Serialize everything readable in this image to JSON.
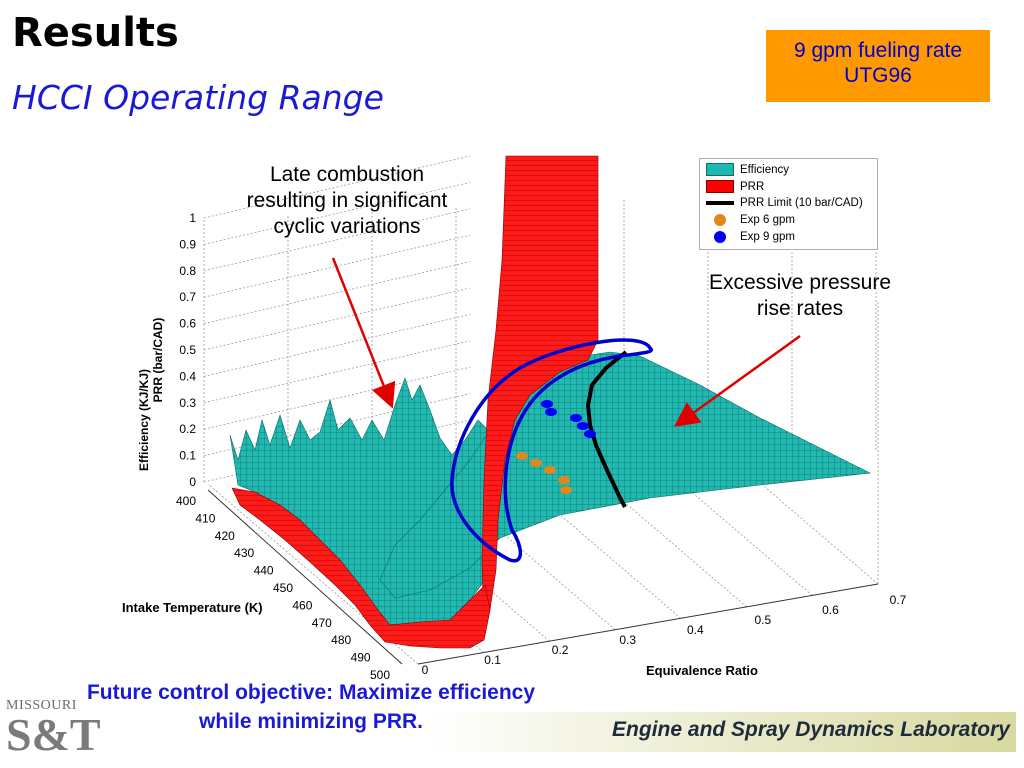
{
  "slide": {
    "title": "Results",
    "subtitle": "HCCI Operating Range",
    "info_box": [
      "9 gpm fueling rate",
      "UTG96"
    ],
    "callouts": {
      "late": [
        "Late combustion",
        "resulting in significant",
        "cyclic variations"
      ],
      "excess": [
        "Excessive pressure",
        "rise rates"
      ]
    },
    "footer": {
      "objective": [
        "Future control objective:  Maximize efficiency",
        "while minimizing PRR."
      ],
      "lab": "Engine and Spray Dynamics Laboratory",
      "logo_word": "MISSOURI",
      "logo_mark": "S&T"
    }
  },
  "colors": {
    "efficiency": "#1fb8b0",
    "prr": "#ff0000",
    "prr_limit": "#000000",
    "exp6": "#e0871e",
    "exp9": "#0000ff",
    "highlight": "#0000cc",
    "arrow": "#e00000",
    "info_box": "#ff9900"
  },
  "chart_data": {
    "type": "surface3d",
    "zlabel": "Efficiency (KJ/KJ)\nPRR (bar/CAD)",
    "zlabel_lines": [
      "Efficiency (KJ/KJ)",
      "PRR (bar/CAD)"
    ],
    "ylabel": "Intake Temperature (K)",
    "xlabel": "Equivalence Ratio",
    "z_ticks": [
      "0",
      "0.1",
      "0.2",
      "0.3",
      "0.4",
      "0.5",
      "0.6",
      "0.7",
      "0.8",
      "0.9",
      "1"
    ],
    "y_ticks": [
      "400",
      "410",
      "420",
      "430",
      "440",
      "450",
      "460",
      "470",
      "480",
      "490",
      "500"
    ],
    "x_ticks": [
      "0",
      "0.1",
      "0.2",
      "0.3",
      "0.4",
      "0.5",
      "0.6",
      "0.7"
    ],
    "zlim": [
      0,
      1
    ],
    "ylim": [
      400,
      500
    ],
    "xlim": [
      0,
      0.7
    ],
    "grid": true,
    "legend_position": "top-right",
    "legend": [
      {
        "name": "Efficiency",
        "marker": "patch"
      },
      {
        "name": "PRR",
        "marker": "patch"
      },
      {
        "name": "PRR Limit (10 bar/CAD)",
        "marker": "line"
      },
      {
        "name": "Exp 6 gpm",
        "marker": "circle"
      },
      {
        "name": "Exp 9 gpm",
        "marker": "circle"
      }
    ]
  }
}
